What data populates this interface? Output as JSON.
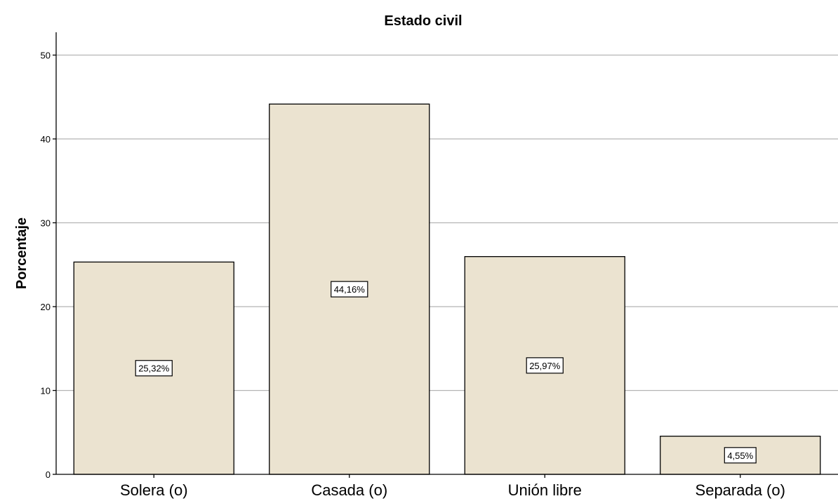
{
  "chart_data": {
    "type": "bar",
    "title": "Estado civil",
    "xlabel": "",
    "ylabel": "Porcentaje",
    "categories": [
      "Solera (o)",
      "Casada (o)",
      "Unión libre",
      "Separada (o)"
    ],
    "values": [
      25.32,
      44.16,
      25.97,
      4.55
    ],
    "data_labels": [
      "25,32%",
      "44,16%",
      "25,97%",
      "4,55%"
    ],
    "ylim": [
      0,
      52
    ],
    "yticks": [
      0,
      10,
      20,
      30,
      40,
      50
    ],
    "grid": true,
    "bar_color": "#ebe3d0"
  }
}
